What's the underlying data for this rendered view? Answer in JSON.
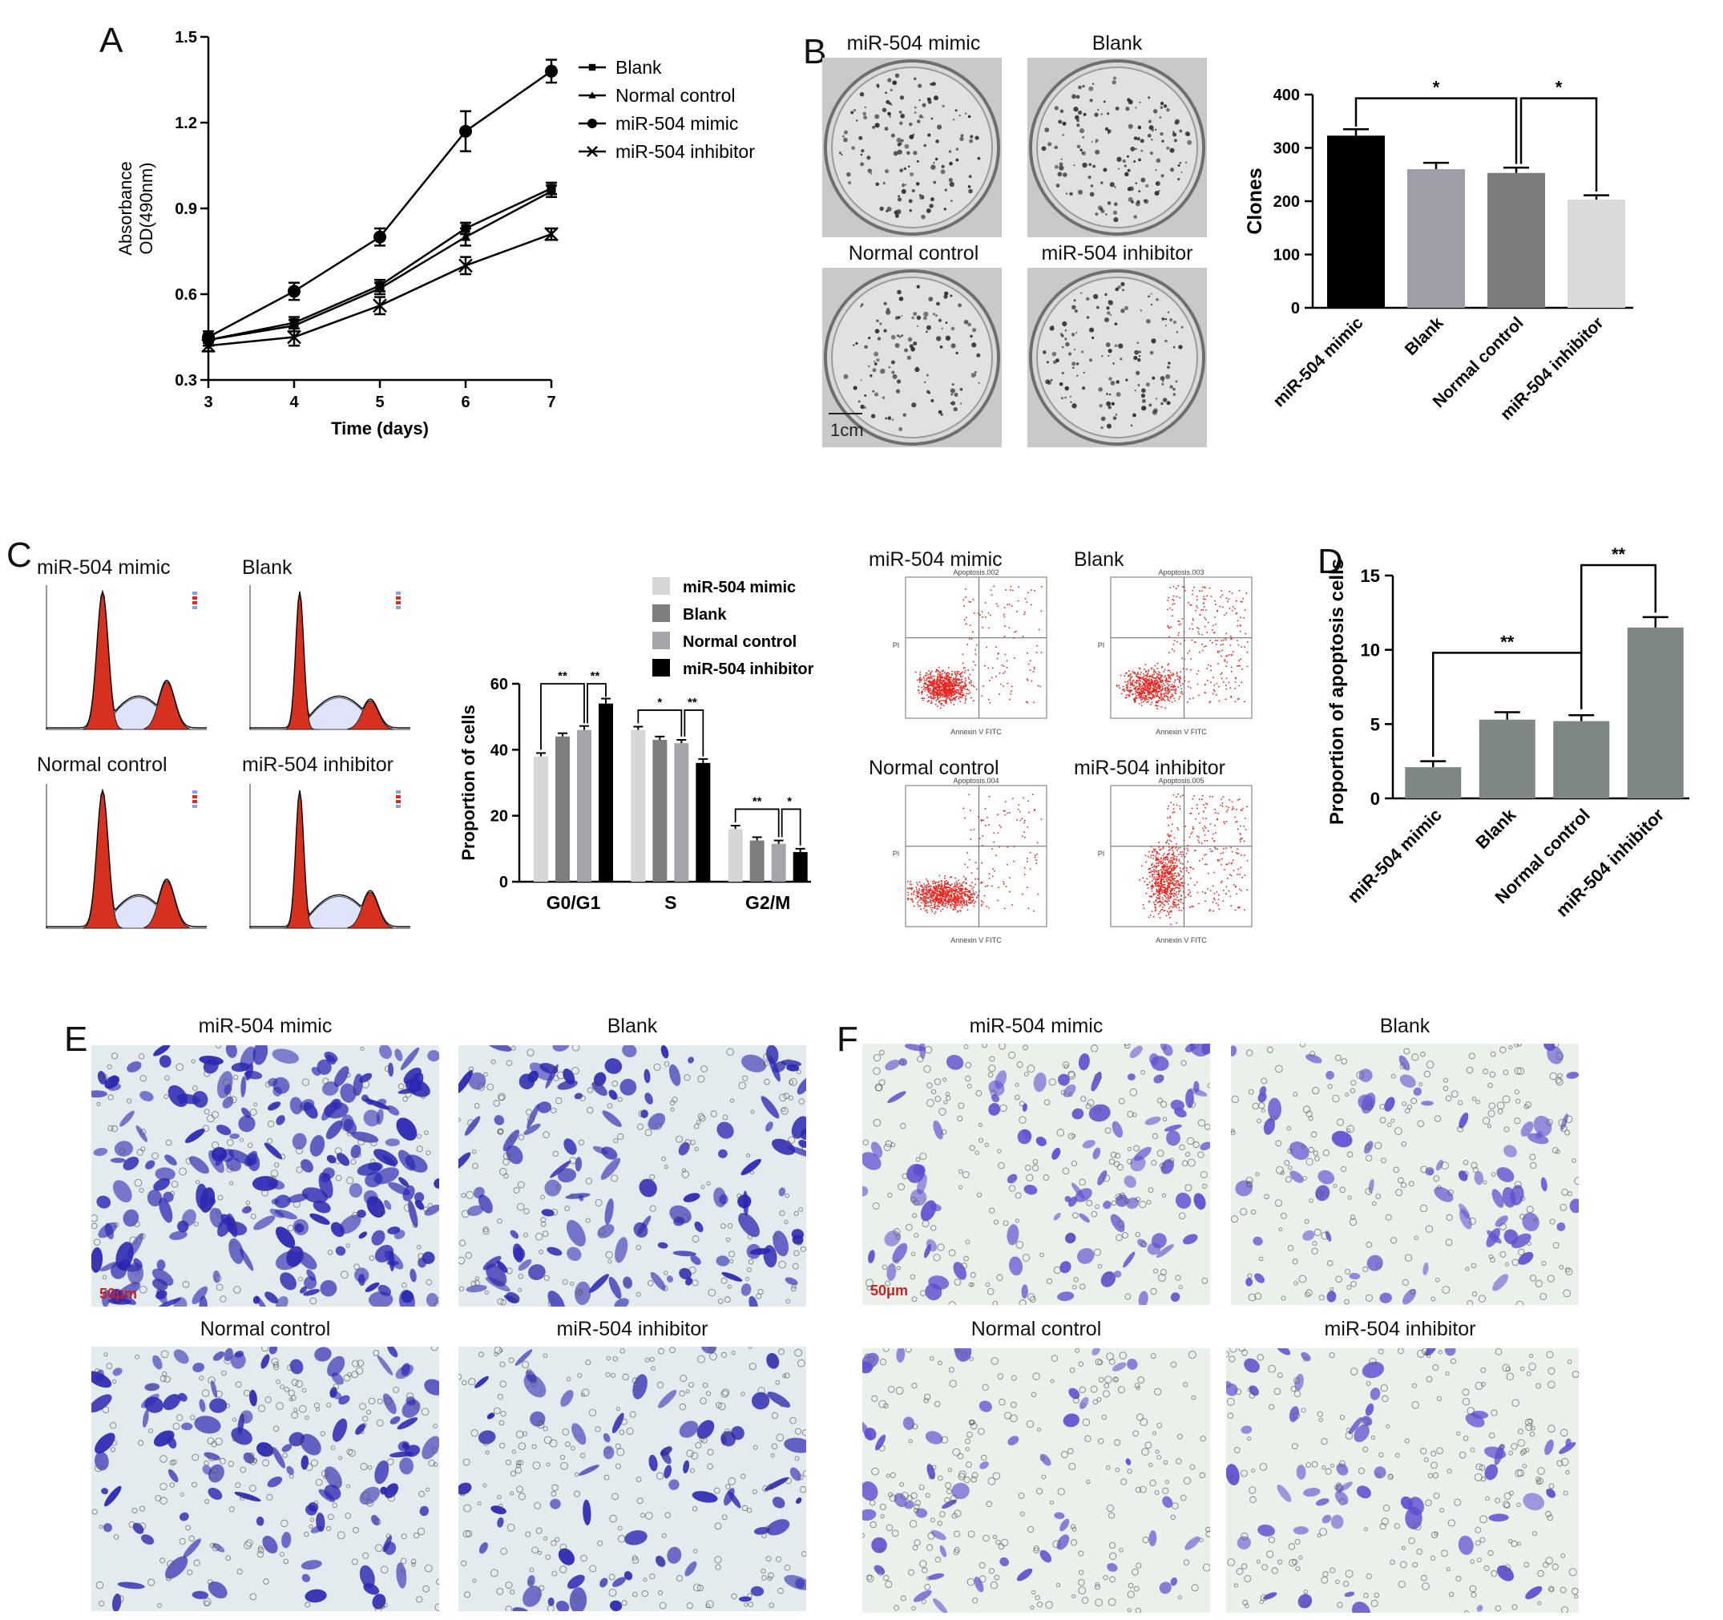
{
  "letters": {
    "A": "A",
    "B": "B",
    "C": "C",
    "D": "D",
    "E": "E",
    "F": "F"
  },
  "chart_data": [
    {
      "panel": "A",
      "type": "line",
      "xlabel": "Time (days)",
      "ylabel": [
        "Absorbance",
        "OD(490nm)"
      ],
      "x": [
        3,
        4,
        5,
        6,
        7
      ],
      "xticks": [
        "3",
        "4",
        "5",
        "6",
        "7"
      ],
      "yticks": [
        "0.3",
        "0.6",
        "0.9",
        "1.2",
        "1.5"
      ],
      "ylim": [
        0.3,
        1.5
      ],
      "xlim": [
        3,
        7
      ],
      "legend_position": "top-right",
      "series": [
        {
          "name": "Blank",
          "marker": "square",
          "values": [
            0.44,
            0.5,
            0.63,
            0.83,
            0.97
          ],
          "errors": [
            0.02,
            0.02,
            0.02,
            0.02,
            0.02
          ]
        },
        {
          "name": "Normal control",
          "marker": "triangle",
          "values": [
            0.44,
            0.49,
            0.62,
            0.8,
            0.96
          ],
          "errors": [
            0.02,
            0.02,
            0.02,
            0.03,
            0.02
          ]
        },
        {
          "name": "miR-504 mimic",
          "marker": "circle",
          "values": [
            0.45,
            0.61,
            0.8,
            1.17,
            1.38
          ],
          "errors": [
            0.02,
            0.03,
            0.03,
            0.07,
            0.04
          ]
        },
        {
          "name": "miR-504 inhibitor",
          "marker": "x",
          "values": [
            0.42,
            0.45,
            0.56,
            0.7,
            0.81
          ],
          "errors": [
            0.02,
            0.03,
            0.03,
            0.03,
            0.02
          ]
        }
      ]
    },
    {
      "panel": "B",
      "type": "bar",
      "ylabel": "Clones",
      "categories": [
        "miR-504 mimic",
        "Blank",
        "Normal control",
        "miR-504 inhibitor"
      ],
      "values": [
        323,
        260,
        253,
        203
      ],
      "errors": [
        12,
        12,
        10,
        8
      ],
      "colors": [
        "#000000",
        "#a19da8",
        "#7c7c7c",
        "#dadada"
      ],
      "ylim": [
        0,
        400
      ],
      "yticks": [
        "0",
        "100",
        "200",
        "300",
        "400"
      ],
      "significance": [
        {
          "from": 0,
          "to": 2,
          "label": "*"
        },
        {
          "from": 2,
          "to": 3,
          "label": "*"
        }
      ]
    },
    {
      "panel": "C",
      "type": "bar",
      "ylabel": "Proportion of cells",
      "categories": [
        "G0/G1",
        "S",
        "G2/M"
      ],
      "ylim": [
        0,
        60
      ],
      "yticks": [
        "0",
        "20",
        "40",
        "60"
      ],
      "legend_position": "top",
      "series": [
        {
          "name": "miR-504 mimic",
          "color": "#d6d6d6",
          "values": [
            38,
            46,
            16
          ],
          "errors": [
            1,
            1,
            1
          ]
        },
        {
          "name": "Blank",
          "color": "#7d7d7d",
          "values": [
            44,
            43,
            12.5
          ],
          "errors": [
            1,
            1,
            1
          ]
        },
        {
          "name": "Normal control",
          "color": "#a6a5ab",
          "values": [
            46,
            42,
            11.5
          ],
          "errors": [
            1.2,
            1,
            1
          ]
        },
        {
          "name": "miR-504 inhibitor",
          "color": "#000000",
          "values": [
            54,
            36,
            9
          ],
          "errors": [
            1.5,
            1.2,
            1
          ]
        }
      ],
      "significance": [
        {
          "group": 0,
          "from": 0,
          "to": 2,
          "label": "**"
        },
        {
          "group": 0,
          "from": 2,
          "to": 3,
          "label": "**"
        },
        {
          "group": 1,
          "from": 0,
          "to": 2,
          "label": "*"
        },
        {
          "group": 1,
          "from": 2,
          "to": 3,
          "label": "**"
        },
        {
          "group": 2,
          "from": 0,
          "to": 2,
          "label": "**"
        },
        {
          "group": 2,
          "from": 2,
          "to": 3,
          "label": "*"
        }
      ]
    },
    {
      "panel": "D",
      "type": "bar",
      "ylabel": "Proportion of apoptosis cells",
      "categories": [
        "miR-504 mimic",
        "Blank",
        "Normal control",
        "miR-504 inhibitor"
      ],
      "values": [
        2.1,
        5.3,
        5.2,
        11.5
      ],
      "errors": [
        0.4,
        0.5,
        0.4,
        0.7
      ],
      "color": "#7e8785",
      "ylim": [
        0,
        15
      ],
      "yticks": [
        "0",
        "5",
        "10",
        "15"
      ],
      "significance": [
        {
          "from": 0,
          "to": 2,
          "label": "**"
        },
        {
          "from": 2,
          "to": 3,
          "label": "**"
        }
      ]
    }
  ],
  "panelB_images": {
    "titles": [
      "miR-504 mimic",
      "Blank",
      "Normal control",
      "miR-504 inhibitor"
    ],
    "scale": "1cm"
  },
  "panelC_histograms": {
    "titles": [
      "miR-504 mimic",
      "Blank",
      "Normal control",
      "miR-504 inhibitor"
    ]
  },
  "panelC_flow": {
    "titles": [
      "miR-504 mimic",
      "Blank",
      "Normal control",
      "miR-504 inhibitor"
    ],
    "subtitles": [
      "Apoptosis.002",
      "Apoptosis.003",
      "Apoptosis.004",
      "Apoptosis.005"
    ],
    "xaxis": "Annexin V FITC",
    "yaxis": "PI"
  },
  "panelE": {
    "titles": [
      "miR-504 mimic",
      "Blank",
      "Normal control",
      "miR-504 inhibitor"
    ],
    "scale": "50μm"
  },
  "panelF": {
    "titles": [
      "miR-504 mimic",
      "Blank",
      "Normal control",
      "miR-504 inhibitor"
    ],
    "scale": "50μm"
  }
}
